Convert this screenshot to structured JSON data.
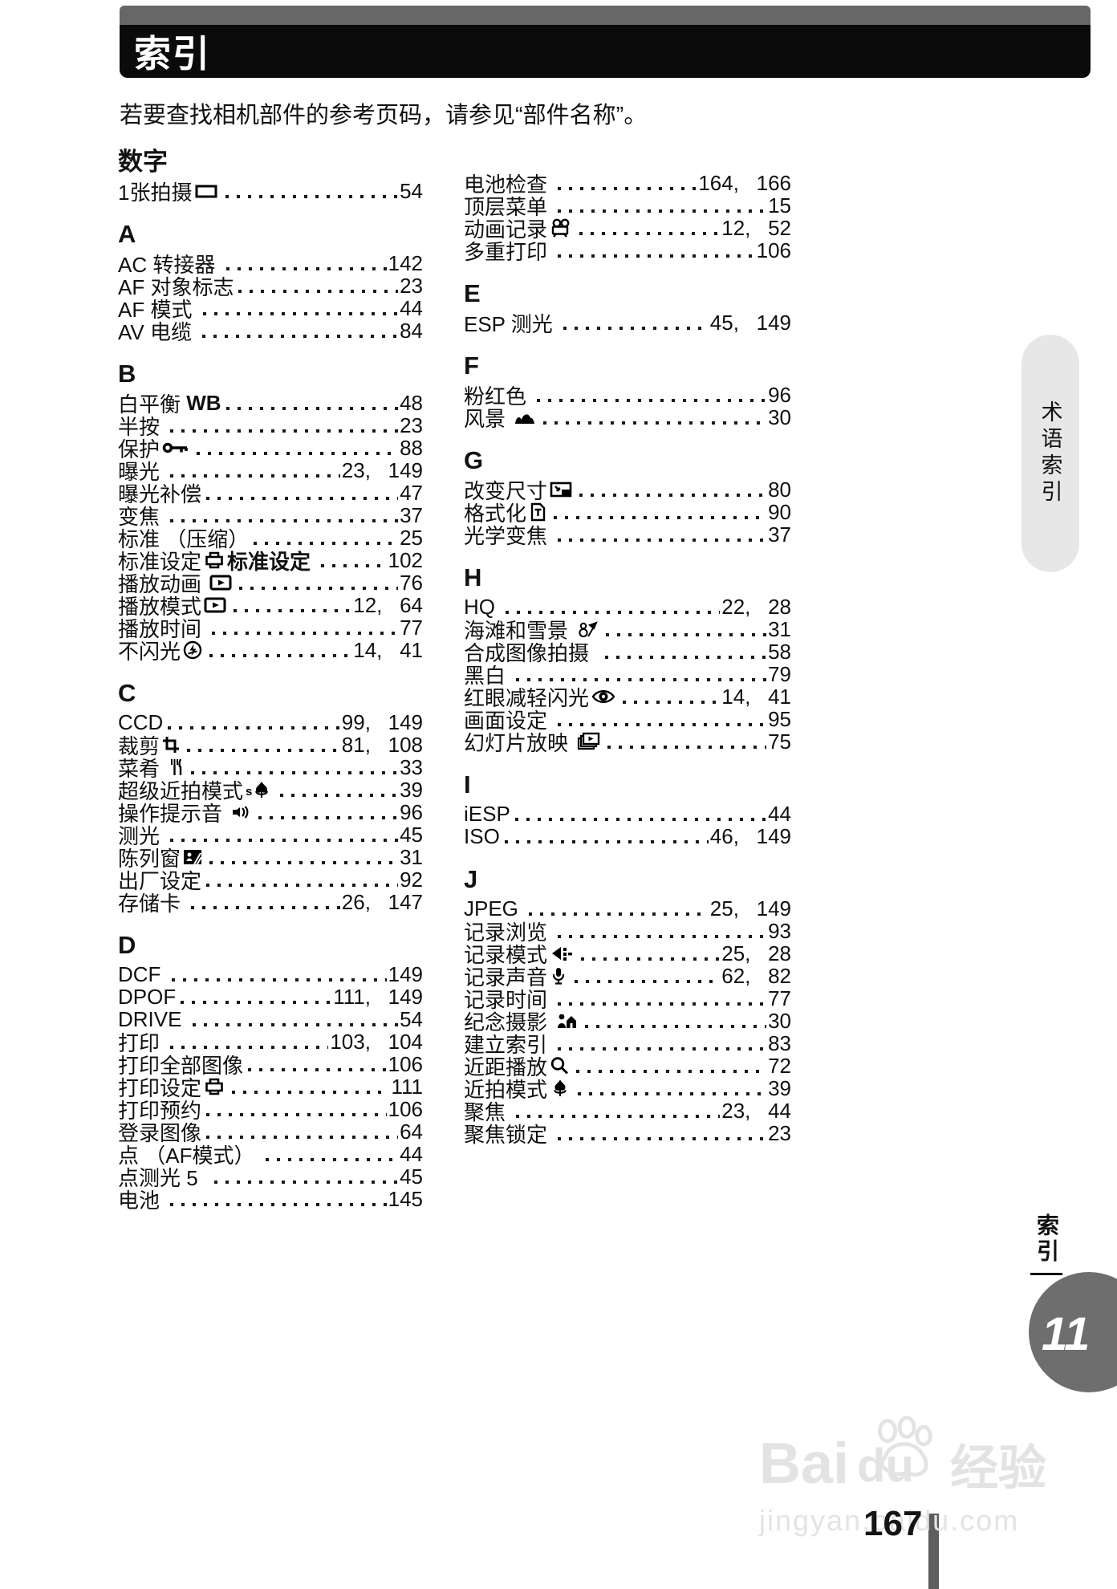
{
  "header": {
    "title": "索引"
  },
  "intro": "若要查找相机部件的参考页码，请参见“部件名称”。",
  "columns": [
    {
      "sections": [
        {
          "header": "数字",
          "entries": [
            {
              "label": "1张拍摄",
              "icon": "single-frame-icon",
              "pages": "54"
            }
          ]
        },
        {
          "header": "A",
          "entries": [
            {
              "label": "AC 转接器 ",
              "pages": "142"
            },
            {
              "label": "AF 对象标志",
              "pages": "23"
            },
            {
              "label": "AF 模式 ",
              "pages": "44"
            },
            {
              "label": "AV 电缆 ",
              "pages": "84"
            }
          ]
        },
        {
          "header": "B",
          "entries": [
            {
              "label": "白平衡 ",
              "bold": "WB",
              "pages": "48"
            },
            {
              "label": "半按 ",
              "pages": "23"
            },
            {
              "label": "保护",
              "icon": "protect-key-icon",
              "pages": "88"
            },
            {
              "label": "曝光 ",
              "pages": "23,   149"
            },
            {
              "label": "曝光补偿",
              "pages": "47"
            },
            {
              "label": "变焦 ",
              "pages": "37"
            },
            {
              "label": "标准 （压缩）",
              "pages": "25"
            },
            {
              "label": "标准设定",
              "icon": "print-icon",
              "bold": "标准设定 ",
              "pages": "102"
            },
            {
              "label": "播放动画 ",
              "icon": "playback-icon",
              "pages": "76"
            },
            {
              "label": "播放模式",
              "icon": "playback-icon",
              "pages": "12,   64"
            },
            {
              "label": "播放时间 ",
              "pages": "77"
            },
            {
              "label": "不闪光",
              "icon": "flash-off-icon",
              "pages": "14,   41"
            }
          ]
        },
        {
          "header": "C",
          "entries": [
            {
              "label": "CCD",
              "pages": "99,   149"
            },
            {
              "label": "裁剪",
              "icon": "crop-icon",
              "pages": "81,   108"
            },
            {
              "label": "菜肴 ",
              "icon": "cuisine-icon",
              "pages": "33"
            },
            {
              "label": "超级近拍模式",
              "icon": "super-macro-icon",
              "pages": "39"
            },
            {
              "label": "操作提示音 ",
              "icon": "beep-icon",
              "pages": "96"
            },
            {
              "label": "测光 ",
              "pages": "45"
            },
            {
              "label": "陈列窗",
              "icon": "showcase-icon",
              "pages": "31"
            },
            {
              "label": "出厂设定",
              "pages": "92"
            },
            {
              "label": "存储卡 ",
              "pages": "26,   147"
            }
          ]
        },
        {
          "header": "D",
          "entries": [
            {
              "label": "DCF ",
              "pages": "149"
            },
            {
              "label": "DPOF",
              "pages": "111,   149"
            },
            {
              "label": "DRIVE ",
              "pages": "54"
            },
            {
              "label": "打印 ",
              "pages": "103,   104"
            },
            {
              "label": "打印全部图像",
              "pages": "106"
            },
            {
              "label": "打印设定",
              "icon": "print-icon",
              "pages": "111"
            },
            {
              "label": "打印预约",
              "pages": "106"
            },
            {
              "label": "登录图像",
              "pages": "64"
            },
            {
              "label": "点 （AF模式） ",
              "pages": "44"
            },
            {
              "label": "点测光 5  ",
              "pages": "45"
            },
            {
              "label": "电池 ",
              "pages": "145"
            }
          ]
        }
      ]
    },
    {
      "sections": [
        {
          "header": null,
          "entries": [
            {
              "label": "电池检查 ",
              "pages": "164,   166"
            },
            {
              "label": "顶层菜单 ",
              "pages": "15"
            },
            {
              "label": "动画记录",
              "icon": "movie-icon",
              "pages": "12,   52"
            },
            {
              "label": "多重打印 ",
              "pages": "106"
            }
          ]
        },
        {
          "header": "E",
          "entries": [
            {
              "label": "ESP 测光 ",
              "pages": "45,   149"
            }
          ]
        },
        {
          "header": "F",
          "entries": [
            {
              "label": "粉红色 ",
              "pages": "96"
            },
            {
              "label": "风景 ",
              "icon": "landscape-icon",
              "pages": "30"
            }
          ]
        },
        {
          "header": "G",
          "entries": [
            {
              "label": "改变尺寸",
              "icon": "resize-icon",
              "pages": "80"
            },
            {
              "label": "格式化",
              "icon": "format-icon",
              "pages": "90"
            },
            {
              "label": "光学变焦 ",
              "pages": "37"
            }
          ]
        },
        {
          "header": "H",
          "entries": [
            {
              "label": "HQ ",
              "pages": "22,   28"
            },
            {
              "label": "海滩和雪景 ",
              "icon": "beach-snow-icon",
              "pages": "31"
            },
            {
              "label": "合成图像拍摄  ",
              "pages": "58"
            },
            {
              "label": "黑白 ",
              "pages": "79"
            },
            {
              "label": "红眼减轻闪光",
              "icon": "red-eye-icon",
              "pages": "14,   41"
            },
            {
              "label": "画面设定 ",
              "pages": "95"
            },
            {
              "label": "幻灯片放映 ",
              "icon": "slideshow-icon",
              "pages": "75"
            }
          ]
        },
        {
          "header": "I",
          "entries": [
            {
              "label": "iESP",
              "pages": "44"
            },
            {
              "label": "ISO",
              "pages": "46,   149"
            }
          ]
        },
        {
          "header": "J",
          "entries": [
            {
              "label": "JPEG ",
              "pages": "25,   149"
            },
            {
              "label": "记录浏览 ",
              "pages": "93"
            },
            {
              "label": "记录模式",
              "icon": "record-mode-icon",
              "pages": "25,   28"
            },
            {
              "label": "记录声音",
              "icon": "record-sound-icon",
              "pages": "62,   82"
            },
            {
              "label": "记录时间 ",
              "pages": "77"
            },
            {
              "label": "纪念摄影 ",
              "icon": "memorial-icon",
              "pages": "30"
            },
            {
              "label": "建立索引 ",
              "pages": "83"
            },
            {
              "label": "近距播放",
              "icon": "close-up-playback-icon",
              "pages": "72"
            },
            {
              "label": "近拍模式",
              "icon": "macro-icon",
              "pages": "39"
            },
            {
              "label": "聚焦 ",
              "pages": "23,   44"
            },
            {
              "label": "聚焦锁定 ",
              "pages": "23"
            }
          ]
        }
      ]
    }
  ],
  "side": {
    "tab_top": "术语索引",
    "tab_bottom": "索引",
    "chapter_badge": "11"
  },
  "footer": {
    "page_number": "167",
    "watermark_part1": "Bai",
    "watermark_part2": "du",
    "watermark_suffix": "经验",
    "watermark_url": "jingyan.baidu.com"
  }
}
